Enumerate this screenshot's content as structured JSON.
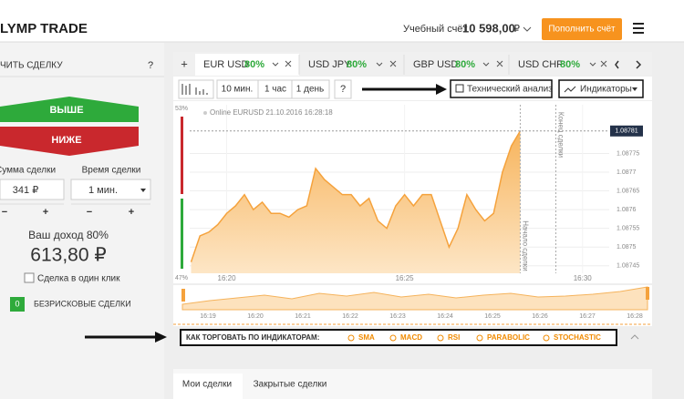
{
  "header": {
    "logo": "LYMP TRADE",
    "account_label": "Учебный счёт",
    "balance": "10 598,00",
    "currency": "₽",
    "deposit_button": "Пополнить счёт"
  },
  "trade_panel": {
    "title": "ЧИТЬ СДЕЛКУ",
    "help": "?",
    "up": "ВЫШЕ",
    "down": "НИЖЕ",
    "amount_label": "Сумма сделки",
    "time_label": "Время сделки",
    "amount": "341 ₽",
    "time": "1 мин.",
    "minus": "−",
    "plus": "+",
    "income_label": "Ваш доход 80%",
    "income": "613,80 ₽",
    "one_click": "Сделка в один клик",
    "riskless_count": "0",
    "riskless": "БЕЗРИСКОВЫЕ СДЕЛКИ"
  },
  "tabs": {
    "add": "+",
    "items": [
      {
        "asset": "EUR USD",
        "payout": "80%"
      },
      {
        "asset": "USD JPY",
        "payout": "80%"
      },
      {
        "asset": "GBP USD",
        "payout": "80%"
      },
      {
        "asset": "USD CHF",
        "payout": "80%"
      }
    ]
  },
  "toolbar": {
    "periods": [
      "10 мин.",
      "1 час",
      "1 день"
    ],
    "help": "?",
    "analysis": "Технический анализ",
    "indicators": "Индикаторы"
  },
  "chart_data": {
    "type": "area",
    "title": "Online EURUSD 21.10.2016 16:28:18",
    "color": "#f5a23c",
    "up_share": "53%",
    "down_share": "47%",
    "trade_start": "Начало сделки",
    "trade_end": "Конец сделки",
    "x": [
      "16:19:00",
      "16:19:15",
      "16:19:30",
      "16:19:45",
      "16:20:00",
      "16:20:15",
      "16:20:30",
      "16:20:45",
      "16:21:00",
      "16:21:15",
      "16:21:30",
      "16:21:45",
      "16:22:00",
      "16:22:15",
      "16:22:30",
      "16:22:45",
      "16:23:00",
      "16:23:15",
      "16:23:30",
      "16:23:45",
      "16:24:00",
      "16:24:15",
      "16:24:30",
      "16:24:45",
      "16:25:00",
      "16:25:15",
      "16:25:30",
      "16:25:45",
      "16:26:00",
      "16:26:15",
      "16:26:30",
      "16:26:45",
      "16:27:00",
      "16:27:15",
      "16:27:30",
      "16:27:45",
      "16:28:00",
      "16:28:15"
    ],
    "values": [
      1.08746,
      1.08753,
      1.08754,
      1.08756,
      1.08759,
      1.08761,
      1.08764,
      1.0876,
      1.08762,
      1.08759,
      1.08759,
      1.08758,
      1.0876,
      1.08761,
      1.08771,
      1.08768,
      1.08766,
      1.08764,
      1.08764,
      1.08761,
      1.08763,
      1.08757,
      1.08755,
      1.08761,
      1.08764,
      1.08761,
      1.08764,
      1.08764,
      1.08757,
      1.0875,
      1.08755,
      1.08764,
      1.0876,
      1.08757,
      1.08759,
      1.0877,
      1.08777,
      1.08781
    ],
    "xlim": [
      "16:18:30",
      "16:30:45"
    ],
    "xticks": [
      "16:20",
      "16:25",
      "16:30"
    ],
    "ylim": [
      1.08743,
      1.08788
    ],
    "yticks": [
      1.08745,
      1.0875,
      1.08755,
      1.0876,
      1.08765,
      1.0877,
      1.08775
    ],
    "navigator_ticks": [
      "16:19",
      "16:20",
      "16:21",
      "16:22",
      "16:23",
      "16:24",
      "16:25",
      "16:26",
      "16:27",
      "16:28"
    ]
  },
  "indicator_bar": {
    "title": "КАК ТОРГОВАТЬ ПО ИНДИКАТОРАМ:",
    "items": [
      "SMA",
      "MACD",
      "RSI",
      "PARABOLIC",
      "STOCHASTIC"
    ]
  },
  "bottom_tabs": [
    "Мои сделки",
    "Закрытые сделки"
  ]
}
